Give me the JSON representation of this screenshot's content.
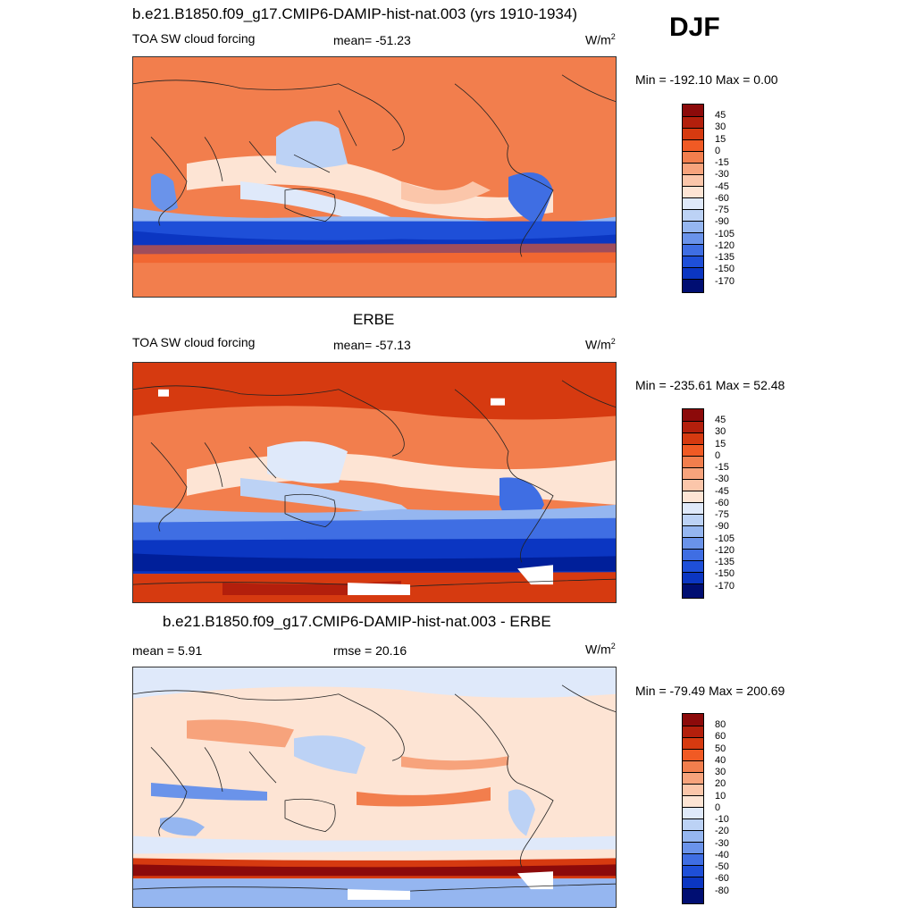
{
  "season": "DJF",
  "colors": {
    "warm": [
      "#8c0a0a",
      "#b31f0c",
      "#d63a10",
      "#f05a24",
      "#f27e4d",
      "#f7a37c",
      "#fbc6aa",
      "#fde4d4"
    ],
    "cool": [
      "#dfe9fa",
      "#bcd2f5",
      "#95b6f0",
      "#6a93ea",
      "#3f6ee3",
      "#1e4fd8",
      "#0b36c2",
      "#001f9a",
      "#000e72"
    ],
    "land_line": "#222222"
  },
  "panels": [
    {
      "title": "b.e21.B1850.f09_g17.CMIP6-DAMIP-hist-nat.003 (yrs 1910-1934)",
      "left_label": "TOA SW cloud forcing",
      "center_label": "mean= -51.23",
      "units": "W/m",
      "units_sup": "2",
      "minmax": "Min = -192.10 Max =   0.00",
      "ticks": [
        "45",
        "30",
        "15",
        "0",
        "-15",
        "-30",
        "-45",
        "-60",
        "-75",
        "-90",
        "-105",
        "-120",
        "-135",
        "-150",
        "-170"
      ]
    },
    {
      "title": "ERBE",
      "left_label": "TOA SW cloud forcing",
      "center_label": "mean= -57.13",
      "units": "W/m",
      "units_sup": "2",
      "minmax": "Min = -235.61 Max =  52.48",
      "ticks": [
        "45",
        "30",
        "15",
        "0",
        "-15",
        "-30",
        "-45",
        "-60",
        "-75",
        "-90",
        "-105",
        "-120",
        "-135",
        "-150",
        "-170"
      ]
    },
    {
      "title": "b.e21.B1850.f09_g17.CMIP6-DAMIP-hist-nat.003 - ERBE",
      "left_label": "mean =   5.91",
      "center_label": "rmse =  20.16",
      "units": "W/m",
      "units_sup": "2",
      "minmax": "Min = -79.49 Max = 200.69",
      "ticks": [
        "80",
        "60",
        "50",
        "40",
        "30",
        "20",
        "10",
        "0",
        "-10",
        "-20",
        "-30",
        "-40",
        "-50",
        "-60",
        "-80"
      ]
    }
  ]
}
